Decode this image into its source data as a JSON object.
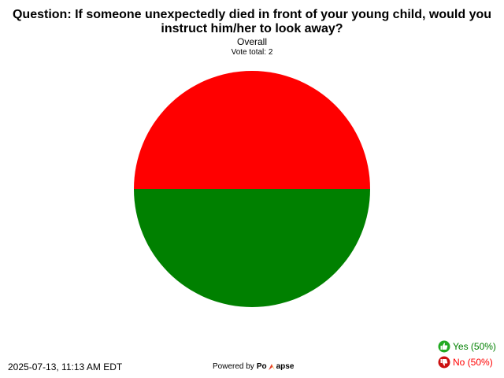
{
  "chart_data": {
    "type": "pie",
    "title": "Question: If someone unexpectedly died in front of your young child, would you instruct him/her to look away?",
    "subtitle": "Overall",
    "vote_total_text": "Vote total: 2",
    "categories": [
      "Yes",
      "No"
    ],
    "values": [
      1,
      1
    ],
    "colors": [
      "#008000",
      "#ff0000"
    ],
    "legend_position": "bottom-right",
    "legend": [
      {
        "label": "Yes (50%)",
        "color": "#008000",
        "icon": "thumbs-up-icon"
      },
      {
        "label": "No (50%)",
        "color": "#ff0000",
        "icon": "thumbs-down-icon"
      }
    ]
  },
  "footer": {
    "timestamp": "2025-07-13, 11:13 AM EDT",
    "powered_by": "Powered by",
    "brand_left": "Po",
    "brand_right": "apse"
  }
}
